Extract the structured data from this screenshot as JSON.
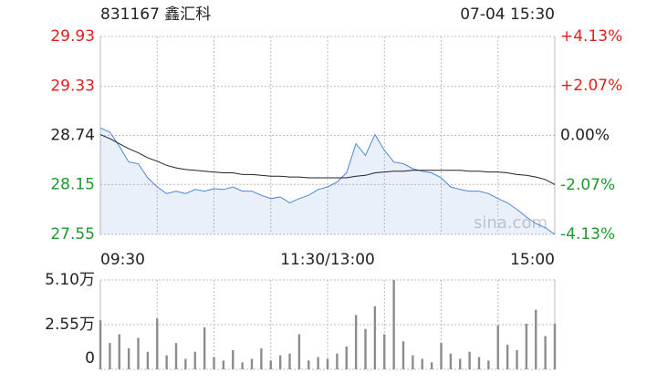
{
  "header": {
    "title": "831167 鑫汇科",
    "time": "07-04 15:30"
  },
  "chart_data": [
    {
      "type": "line",
      "annotation": "sina.com",
      "categories": [
        "09:30",
        null,
        null,
        null,
        null,
        null,
        null,
        null,
        null,
        null,
        null,
        null,
        null,
        null,
        null,
        null,
        null,
        null,
        null,
        null,
        null,
        null,
        null,
        null,
        "11:30/13:00",
        null,
        null,
        null,
        null,
        null,
        null,
        null,
        null,
        null,
        null,
        null,
        null,
        null,
        null,
        null,
        null,
        null,
        null,
        null,
        null,
        null,
        null,
        null,
        "15:00"
      ],
      "series": [
        {
          "color": "#4a86d8",
          "values": [
            28.83,
            28.78,
            28.61,
            28.42,
            28.4,
            28.23,
            28.12,
            28.04,
            28.07,
            28.04,
            28.09,
            28.07,
            28.1,
            28.09,
            28.12,
            28.07,
            28.07,
            28.02,
            27.98,
            28.0,
            27.93,
            27.98,
            28.02,
            28.09,
            28.12,
            28.18,
            28.29,
            28.64,
            28.5,
            28.75,
            28.56,
            28.42,
            28.4,
            28.34,
            28.31,
            28.29,
            28.23,
            28.12,
            28.09,
            28.07,
            28.07,
            28.04,
            27.98,
            27.93,
            27.85,
            27.76,
            27.68,
            27.63,
            27.55
          ]
        },
        {
          "color": "#222222",
          "values": [
            28.75,
            28.7,
            28.64,
            28.58,
            28.53,
            28.47,
            28.43,
            28.38,
            28.35,
            28.33,
            28.32,
            28.31,
            28.3,
            28.29,
            28.29,
            28.27,
            28.27,
            28.26,
            28.25,
            28.25,
            28.24,
            28.24,
            28.23,
            28.23,
            28.23,
            28.23,
            28.23,
            28.25,
            28.26,
            28.29,
            28.3,
            28.31,
            28.31,
            28.32,
            28.32,
            28.32,
            28.32,
            28.32,
            28.32,
            28.31,
            28.31,
            28.3,
            28.3,
            28.29,
            28.27,
            28.26,
            28.24,
            28.21,
            28.15
          ]
        }
      ],
      "ylim": [
        27.55,
        29.93
      ],
      "yticks": [
        29.93,
        29.33,
        28.74,
        28.15,
        27.55
      ],
      "y2lim": [
        -4.13,
        4.13
      ],
      "y2ticks": [
        {
          "value": 4.13,
          "label": "+4.13%"
        },
        {
          "value": 2.07,
          "label": "+2.07%"
        },
        {
          "value": 0,
          "label": "0.00%"
        },
        {
          "value": -2.07,
          "label": "-2.07%"
        },
        {
          "value": -4.13,
          "label": "-4.13%"
        }
      ],
      "up_color": "#e0201c",
      "down_color": "#1c9a2a",
      "grid": true
    },
    {
      "type": "bar",
      "color": "#8c8c8c",
      "values": [
        2.8,
        1.5,
        2.0,
        1.2,
        1.8,
        1.0,
        2.9,
        0.8,
        1.5,
        0.6,
        1.0,
        2.4,
        0.7,
        0.5,
        1.1,
        0.4,
        0.6,
        1.2,
        0.5,
        0.8,
        0.9,
        2.0,
        0.5,
        0.7,
        0.6,
        0.9,
        1.3,
        3.1,
        2.3,
        3.6,
        2.0,
        5.1,
        1.6,
        0.8,
        0.6,
        0.4,
        1.5,
        0.9,
        0.6,
        1.0,
        0.7,
        0.5,
        2.5,
        1.4,
        1.1,
        2.6,
        3.4,
        1.9,
        2.6
      ],
      "ylim": [
        0,
        5.1
      ],
      "yticks": [
        {
          "value": 5.1,
          "label": "5.10万"
        },
        {
          "value": 2.55,
          "label": "2.55万"
        },
        0
      ],
      "grid": true
    }
  ]
}
